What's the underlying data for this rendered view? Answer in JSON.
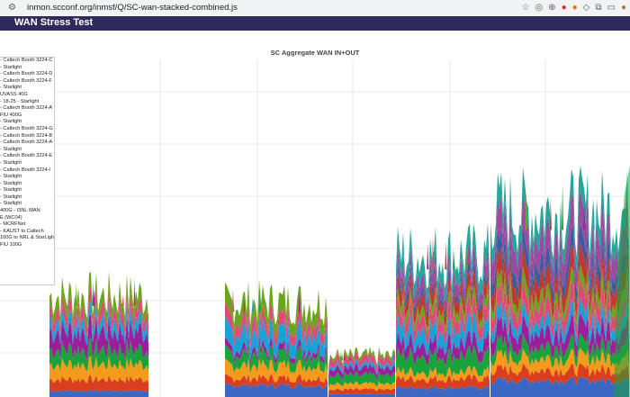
{
  "browser": {
    "url": "inmon.scconf.org/inmsf/Q/SC-wan-stacked-combined.js",
    "icons": [
      "star-icon",
      "extension-icon",
      "extension-icon",
      "extension-icon",
      "extension-icon",
      "extension-icon",
      "puzzle-icon",
      "split-view-icon",
      "avatar"
    ]
  },
  "header": {
    "title": "WAN Stress Test"
  },
  "chart_data": {
    "type": "area",
    "title": "SC Aggregate WAN IN+OUT",
    "xlabel": "",
    "ylabel": "",
    "grid": true,
    "legend_position": "left",
    "legend": [
      "- Caltech Booth 3224-C",
      "- Starlight",
      "- Caltech Booth 3224-D",
      "- Caltech Booth 3224-F",
      "- Starlight",
      "UVASS 40G",
      "- 18-25 - Starlight",
      "- Caltech Booth 3224-A",
      "FIU 400G",
      "- Starlight",
      "- Caltech Booth 3224-G",
      "- Caltech Booth 3224-B",
      "- Caltech Booth 3224-A",
      "- Starlight",
      "- Caltech Booth 3224-E",
      "- Starlight",
      "- Caltech Booth 3224-I",
      "- Starlight",
      "- Starlight",
      "- Starlight",
      "- Starlight",
      "- Starlight",
      "400G - I3NL WAN",
      "E (WC04)",
      "- MCRFNet",
      "- KAUST to Caltech",
      "100G to NRL & StarLight",
      "FIU 100G"
    ],
    "colors": [
      "#3a66c4",
      "#d93f1e",
      "#f59a1b",
      "#1aa33a",
      "#9a1f9a",
      "#1aa1d6",
      "#dd4a78",
      "#6ba51c",
      "#c0392b",
      "#3b5b9e",
      "#9c4aa0",
      "#23a79a",
      "#b5a21d",
      "#6b3bb8",
      "#e24b8d"
    ],
    "segments": [
      {
        "x": [
          0,
          70
        ],
        "totals": [
          0.0
        ]
      },
      {
        "x": [
          55,
          165
        ],
        "totals": [
          0.3
        ]
      },
      {
        "x": [
          250,
          365
        ],
        "totals": [
          0.28
        ]
      },
      {
        "x": [
          365,
          440
        ],
        "totals": [
          0.12
        ]
      },
      {
        "x": [
          440,
          545
        ],
        "totals": [
          0.42
        ]
      },
      {
        "x": [
          545,
          700
        ],
        "totals": [
          0.55
        ]
      }
    ]
  }
}
